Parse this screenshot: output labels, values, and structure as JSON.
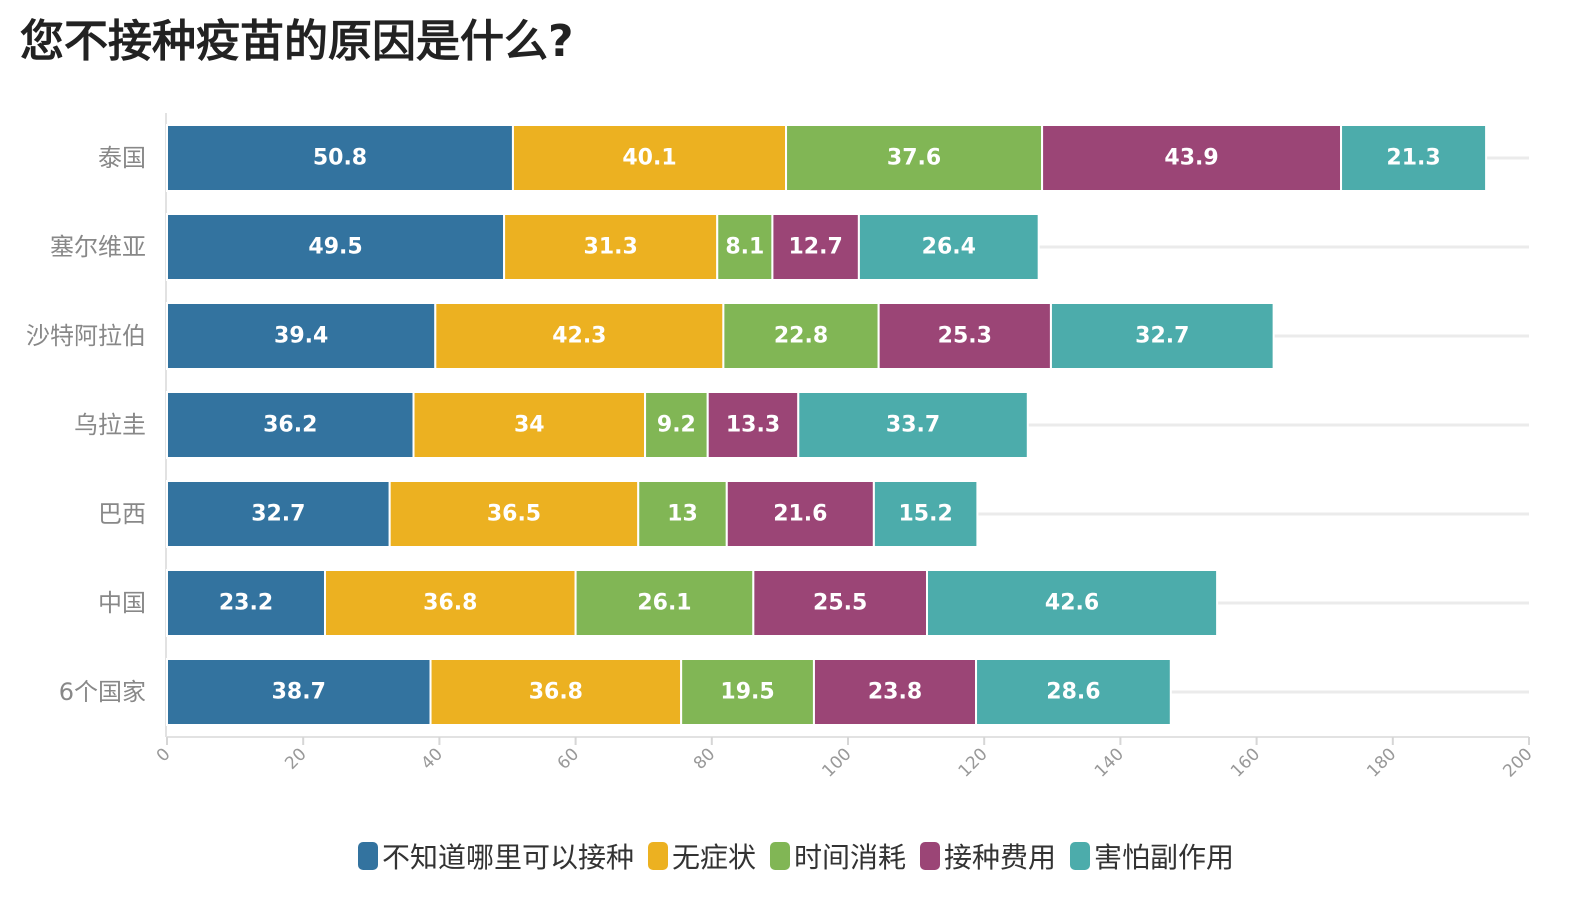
{
  "title": "您不接种疫苗的原因是什么?",
  "chart_data": {
    "type": "bar",
    "orientation": "horizontal",
    "stacked": true,
    "title": "您不接种疫苗的原因是什么?",
    "categories": [
      "泰国",
      "塞尔维亚",
      "沙特阿拉伯",
      "乌拉圭",
      "巴西",
      "中国",
      "6个国家"
    ],
    "series": [
      {
        "name": "不知道哪里可以接种",
        "color": "#33739f",
        "values": [
          50.8,
          49.5,
          39.4,
          36.2,
          32.7,
          23.2,
          38.7
        ]
      },
      {
        "name": "无症状",
        "color": "#ecb121",
        "values": [
          40.1,
          31.3,
          42.3,
          34,
          36.5,
          36.8,
          36.8
        ]
      },
      {
        "name": "时间消耗",
        "color": "#81b655",
        "values": [
          37.6,
          8.1,
          22.8,
          9.2,
          13,
          26.1,
          19.5
        ]
      },
      {
        "name": "接种费用",
        "color": "#9b4576",
        "values": [
          43.9,
          12.7,
          25.3,
          13.3,
          21.6,
          25.5,
          23.8
        ]
      },
      {
        "name": "害怕副作用",
        "color": "#4cacab",
        "values": [
          21.3,
          26.4,
          32.7,
          33.7,
          15.2,
          42.6,
          28.6
        ]
      }
    ],
    "xlim": [
      0,
      200
    ],
    "xticks": [
      0,
      20,
      40,
      60,
      80,
      100,
      120,
      140,
      160,
      180,
      200
    ],
    "grid": true,
    "legend_position": "bottom"
  }
}
